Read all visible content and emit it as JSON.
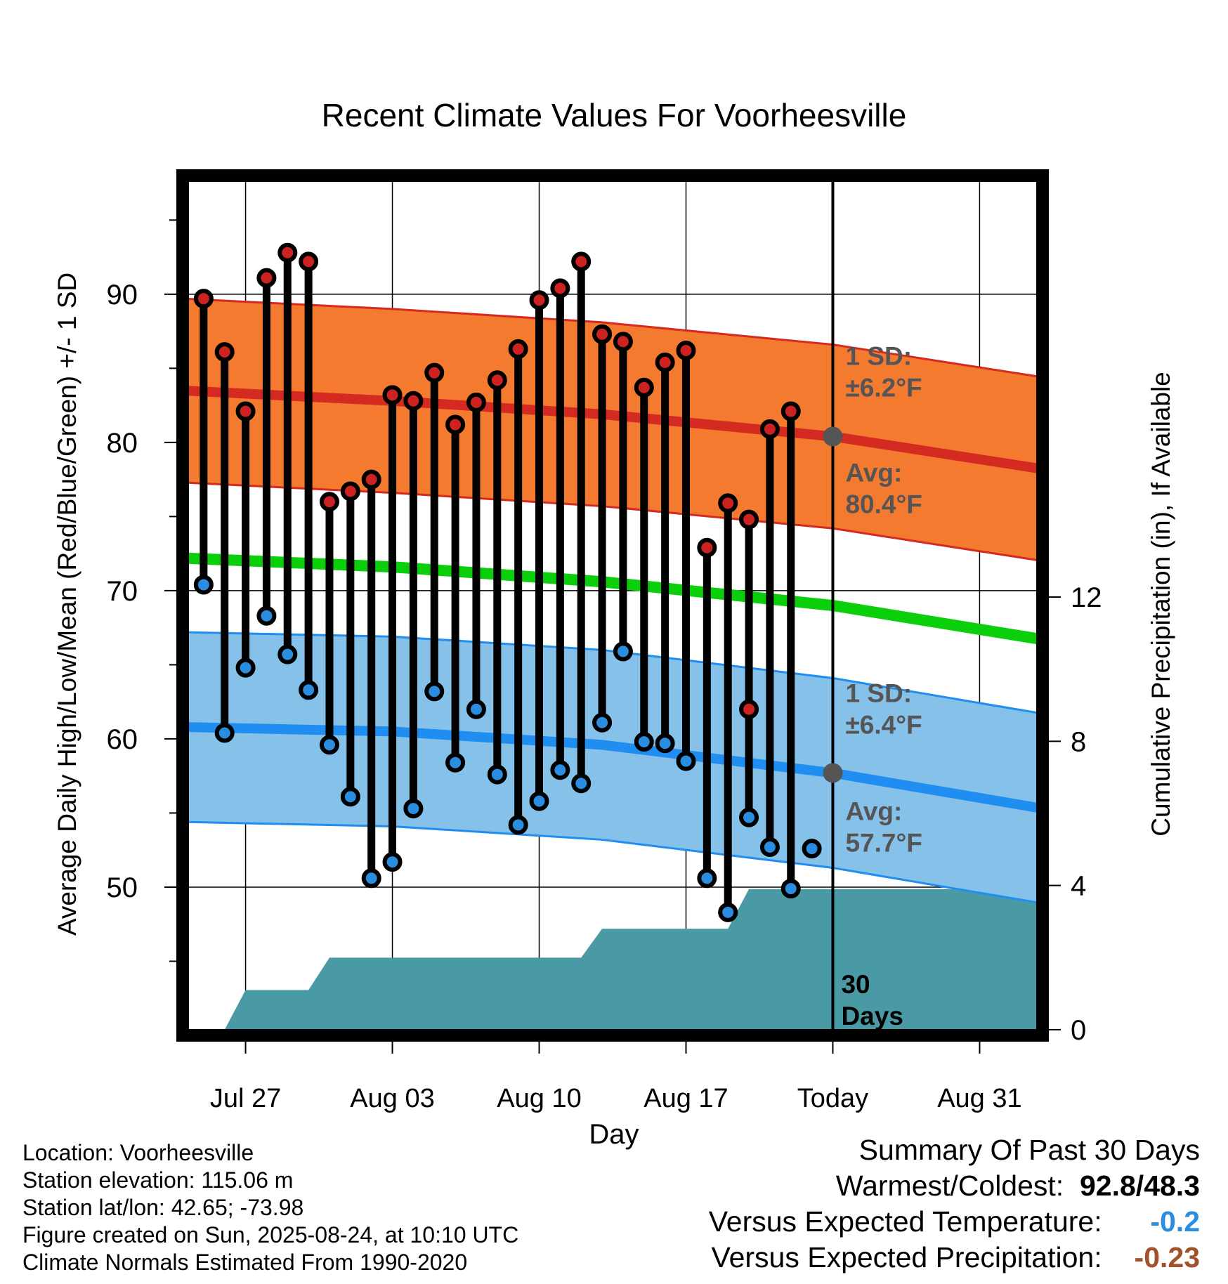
{
  "chart_data": {
    "type": "line",
    "title": "Recent Climate Values For Voorheesville",
    "xlabel": "Day",
    "ylabel": "Average Daily High/Low/Mean (Red/Blue/Green) +/- 1 SD",
    "y2label": "Cumulative Precipitation (in), If Available",
    "x_start": "2025-07-24",
    "x_end": "2025-09-03",
    "ylim": [
      40,
      98
    ],
    "y2lim": [
      0,
      24
    ],
    "today": "2025-08-24",
    "x_ticks": [
      {
        "date": "2025-07-27",
        "label": "Jul 27"
      },
      {
        "date": "2025-08-03",
        "label": "Aug 03"
      },
      {
        "date": "2025-08-10",
        "label": "Aug 10"
      },
      {
        "date": "2025-08-17",
        "label": "Aug 17"
      },
      {
        "date": "2025-08-24",
        "label": "Today"
      },
      {
        "date": "2025-08-31",
        "label": "Aug 31"
      }
    ],
    "y_ticks": [
      50,
      60,
      70,
      80,
      90
    ],
    "y2_ticks": [
      0,
      4,
      8,
      12
    ],
    "grid": true,
    "daily": {
      "dates": [
        "2025-07-25",
        "2025-07-26",
        "2025-07-27",
        "2025-07-28",
        "2025-07-29",
        "2025-07-30",
        "2025-07-31",
        "2025-08-01",
        "2025-08-02",
        "2025-08-03",
        "2025-08-04",
        "2025-08-05",
        "2025-08-06",
        "2025-08-07",
        "2025-08-08",
        "2025-08-09",
        "2025-08-10",
        "2025-08-11",
        "2025-08-12",
        "2025-08-13",
        "2025-08-14",
        "2025-08-15",
        "2025-08-16",
        "2025-08-17",
        "2025-08-18",
        "2025-08-19",
        "2025-08-20",
        "2025-08-21",
        "2025-08-22",
        "2025-08-23"
      ],
      "high": [
        89.7,
        86.1,
        82.1,
        91.1,
        92.8,
        92.2,
        76.0,
        76.7,
        77.5,
        83.2,
        82.8,
        84.7,
        81.2,
        82.7,
        84.2,
        86.3,
        89.6,
        90.4,
        92.2,
        87.3,
        86.8,
        83.7,
        85.4,
        86.2,
        72.9,
        75.9,
        74.8,
        80.9,
        82.1,
        null
      ],
      "low": [
        70.4,
        60.4,
        64.8,
        68.3,
        65.7,
        63.3,
        59.6,
        56.1,
        50.6,
        51.7,
        55.3,
        63.2,
        58.4,
        62.0,
        57.6,
        54.2,
        55.8,
        57.9,
        57.0,
        61.1,
        65.9,
        59.8,
        59.7,
        58.5,
        50.6,
        48.3,
        54.7,
        52.7,
        49.9,
        52.6
      ],
      "high_color": "#cc2222",
      "low_color": "#2a8de0"
    },
    "red_stem_low": {
      "date": "2025-08-20",
      "value": 62.0
    },
    "normals": {
      "dates": [
        "2025-07-24",
        "2025-08-03",
        "2025-08-13",
        "2025-08-24",
        "2025-09-03"
      ],
      "high_avg": [
        83.5,
        82.8,
        81.9,
        80.4,
        78.2
      ],
      "high_sd": 6.2,
      "low_avg": [
        60.8,
        60.5,
        59.6,
        57.7,
        55.3
      ],
      "low_sd": 6.4,
      "mean": [
        72.2,
        71.6,
        70.6,
        69.0,
        66.7
      ],
      "high_band_color": "#f47a30",
      "high_line_color": "#d42a22",
      "low_band_color": "#85c1e8",
      "low_line_color": "#1f8ef0",
      "mean_color": "#0ccf0c"
    },
    "precip": {
      "dates": [
        "2025-07-26",
        "2025-07-27",
        "2025-07-30",
        "2025-07-31",
        "2025-08-12",
        "2025-08-13",
        "2025-08-19",
        "2025-08-20",
        "2025-09-03"
      ],
      "values": [
        0,
        1.1,
        1.1,
        2.0,
        2.0,
        2.8,
        2.8,
        3.9,
        3.9
      ],
      "color": "#4a9aa5"
    },
    "annotations": {
      "high_sd_title": "1 SD:",
      "high_sd_value": "±6.2°F",
      "high_avg_title": "Avg:",
      "high_avg_value": "80.4°F",
      "low_sd_title": "1 SD:",
      "low_sd_value": "±6.4°F",
      "low_avg_title": "Avg:",
      "low_avg_value": "57.7°F",
      "days_line1": "30",
      "days_line2": "Days",
      "color": "#555555"
    }
  },
  "footer": {
    "location": "Location: Voorheesville",
    "elevation": "Station elevation: 115.06 m",
    "latlon": "Station lat/lon: 42.65; -73.98",
    "created": "Figure created on Sun, 2025-08-24, at 10:10 UTC",
    "normals": "Climate Normals Estimated From 1990-2020"
  },
  "summary": {
    "title": "Summary Of Past 30 Days",
    "warmest_label": "Warmest/Coldest:",
    "warmest_value": "92.8/48.3",
    "temp_label": "Versus Expected Temperature:",
    "temp_value": "-0.2",
    "temp_color": "#2a8de0",
    "precip_label": "Versus Expected Precipitation:",
    "precip_value": "-0.23",
    "precip_color": "#a0522d"
  }
}
